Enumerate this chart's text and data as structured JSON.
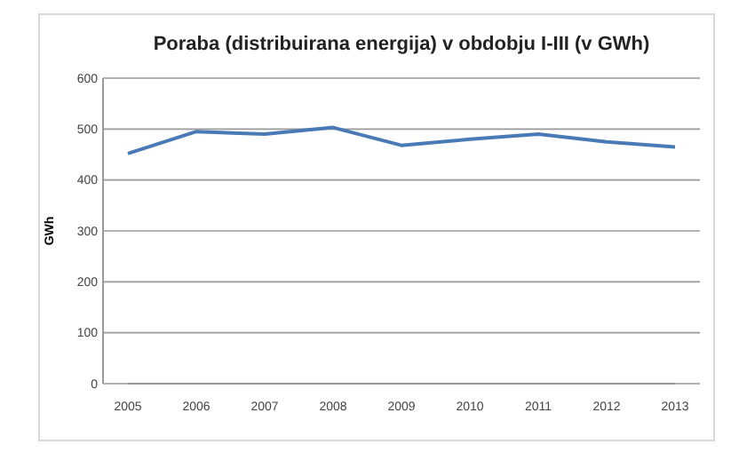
{
  "chart_data": {
    "type": "line",
    "title": "Poraba (distribuirana energija) v obdobju I-III (v GWh)",
    "ylabel": "GWh",
    "categories": [
      "2005",
      "2006",
      "2007",
      "2008",
      "2009",
      "2010",
      "2011",
      "2012",
      "2013"
    ],
    "series": [
      {
        "color": "#4a7ab5",
        "values": [
          452,
          495,
          490,
          503,
          468,
          480,
          490,
          475,
          465
        ]
      }
    ],
    "ylim": [
      0,
      600
    ],
    "yticks": [
      0,
      100,
      200,
      300,
      400,
      500,
      600
    ],
    "grid": "y"
  }
}
